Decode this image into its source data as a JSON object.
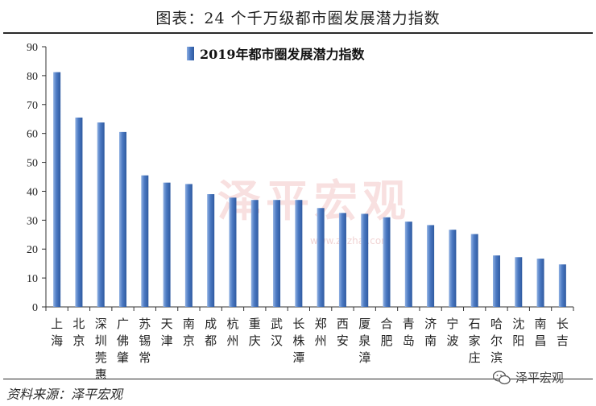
{
  "header": {
    "title": "图表：24 个千万级都市圈发展潜力指数"
  },
  "footer": {
    "source": "资料来源：泽平宏观",
    "brand": "泽平宏观",
    "brand_icon": "wechat-icon"
  },
  "watermark": {
    "text": "泽平宏观",
    "sub": "www.zezhai.com"
  },
  "colors": {
    "bar": "#4b79c2",
    "bar_light": "#8fb0e2",
    "axis": "#333333"
  },
  "chart_data": {
    "type": "bar",
    "categories": [
      "上海",
      "北京",
      "深圳莞惠",
      "广佛肇",
      "苏锡常",
      "天津",
      "南京",
      "成都",
      "杭州",
      "重庆",
      "武汉",
      "长株潭",
      "郑州",
      "西安",
      "厦泉漳",
      "合肥",
      "青岛",
      "济南",
      "宁波",
      "石家庄",
      "哈尔滨",
      "沈阳",
      "南昌",
      "长吉"
    ],
    "series": [
      {
        "name": "2019年都市圈发展潜力指数",
        "values": [
          81.2,
          65.5,
          63.8,
          60.5,
          45.5,
          43.0,
          42.5,
          39.0,
          37.8,
          37.0,
          37.0,
          37.0,
          34.2,
          32.5,
          32.2,
          31.0,
          29.5,
          28.3,
          26.7,
          25.2,
          17.8,
          17.2,
          16.7,
          14.7
        ]
      }
    ],
    "ylim": [
      0,
      90
    ],
    "yticks": [
      0,
      10,
      20,
      30,
      40,
      50,
      60,
      70,
      80,
      90
    ],
    "grid": false,
    "legend": "top-center"
  }
}
